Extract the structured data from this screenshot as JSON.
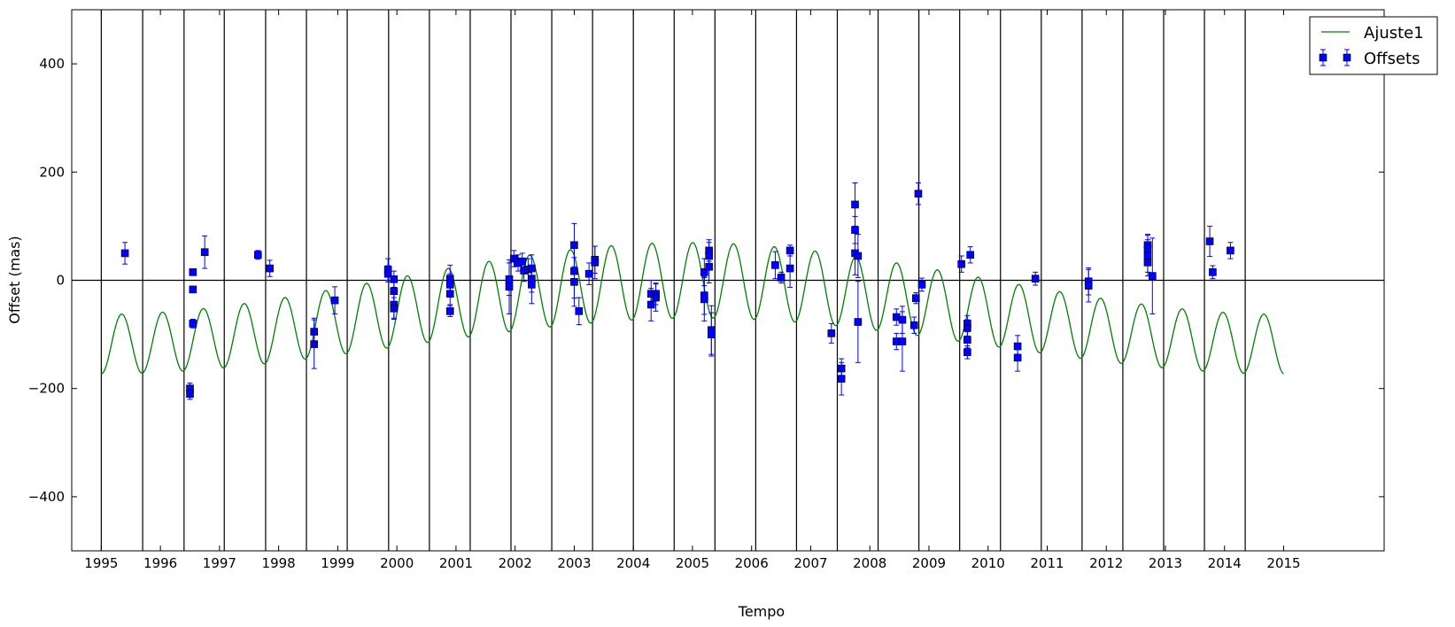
{
  "chart_data": {
    "type": "scatter",
    "title": "",
    "xlabel": "Tempo",
    "ylabel": "Offset (mas)",
    "xlim": [
      1994.5,
      2016.7
    ],
    "ylim": [
      -500,
      500
    ],
    "x_ticks": [
      1995,
      1996,
      1997,
      1998,
      1999,
      2000,
      2001,
      2002,
      2003,
      2004,
      2005,
      2006,
      2007,
      2008,
      2009,
      2010,
      2011,
      2012,
      2013,
      2014,
      2015
    ],
    "x_tick_labels": [
      "1995",
      "1996",
      "1997",
      "1998",
      "1999",
      "2000",
      "2001",
      "2002",
      "2003",
      "2004",
      "2005",
      "2006",
      "2007",
      "2008",
      "2009",
      "2010",
      "2011",
      "2012",
      "2013",
      "2014",
      "2015"
    ],
    "y_ticks": [
      -400,
      -200,
      0,
      200,
      400
    ],
    "y_tick_labels": [
      "−400",
      "−200",
      "0",
      "200",
      "400"
    ],
    "reference_line_y": 0,
    "vertical_lines_x": [
      1995.0,
      1995.7,
      1996.4,
      1997.08,
      1997.78,
      1998.47,
      1999.16,
      1999.86,
      2000.55,
      2001.24,
      2001.93,
      2002.62,
      2003.31,
      2004.0,
      2004.69,
      2005.38,
      2006.07,
      2006.76,
      2007.45,
      2008.14,
      2008.83,
      2009.52,
      2010.21,
      2010.9,
      2011.59,
      2012.28,
      2012.97,
      2013.66,
      2014.35
    ],
    "grid": false,
    "legend_position": "top-right",
    "legend": [
      {
        "label": "Ajuste1",
        "kind": "line",
        "color": "#008000"
      },
      {
        "label": "Offsets",
        "kind": "marker",
        "color": "#0000ff"
      }
    ],
    "series": [
      {
        "name": "Ajuste1",
        "kind": "line",
        "color": "#008000",
        "x_range": [
          1995.0,
          2015.0
        ],
        "model": {
          "period_years": 0.69,
          "phase_ref_year": 1995.0,
          "amplitude_start": 55,
          "amplitude_end": 55,
          "amplitude_mid": 70,
          "amplitude_mid_year": 2004.0,
          "center_start": -118,
          "center_mid": 0,
          "center_end": -118,
          "center_mid_year": 2005.0
        }
      },
      {
        "name": "Offsets",
        "kind": "scatter-errorbar",
        "color": "#0000ff",
        "points": [
          {
            "x": 1995.4,
            "y": 50,
            "err": 20
          },
          {
            "x": 1996.5,
            "y": -200,
            "err": 10
          },
          {
            "x": 1996.5,
            "y": -210,
            "err": 10
          },
          {
            "x": 1996.55,
            "y": 15,
            "err": 5
          },
          {
            "x": 1996.55,
            "y": -17,
            "err": 5
          },
          {
            "x": 1996.55,
            "y": -80,
            "err": 8
          },
          {
            "x": 1996.75,
            "y": 52,
            "err": 30
          },
          {
            "x": 1997.65,
            "y": 47,
            "err": 8
          },
          {
            "x": 1997.85,
            "y": 22,
            "err": 15
          },
          {
            "x": 1998.6,
            "y": -95,
            "err": 25
          },
          {
            "x": 1998.6,
            "y": -118,
            "err": 45
          },
          {
            "x": 1998.95,
            "y": -37,
            "err": 25
          },
          {
            "x": 1999.85,
            "y": 20,
            "err": 20
          },
          {
            "x": 1999.85,
            "y": 12,
            "err": 15
          },
          {
            "x": 1999.95,
            "y": 2,
            "err": 15
          },
          {
            "x": 1999.95,
            "y": -20,
            "err": 20
          },
          {
            "x": 1999.95,
            "y": -45,
            "err": 25
          },
          {
            "x": 1999.95,
            "y": -52,
            "err": 20
          },
          {
            "x": 2000.9,
            "y": 3,
            "err": 25
          },
          {
            "x": 2000.9,
            "y": -8,
            "err": 20
          },
          {
            "x": 2000.9,
            "y": -25,
            "err": 20
          },
          {
            "x": 2000.9,
            "y": -57,
            "err": 10
          },
          {
            "x": 2001.9,
            "y": 2,
            "err": 30
          },
          {
            "x": 2001.9,
            "y": -12,
            "err": 50
          },
          {
            "x": 2001.98,
            "y": 40,
            "err": 15
          },
          {
            "x": 2002.05,
            "y": 32,
            "err": 15
          },
          {
            "x": 2002.12,
            "y": 35,
            "err": 15
          },
          {
            "x": 2002.15,
            "y": 18,
            "err": 20
          },
          {
            "x": 2002.22,
            "y": 20,
            "err": 20
          },
          {
            "x": 2002.28,
            "y": 22,
            "err": 25
          },
          {
            "x": 2002.28,
            "y": 3,
            "err": 25
          },
          {
            "x": 2002.28,
            "y": -8,
            "err": 35
          },
          {
            "x": 2003.0,
            "y": 65,
            "err": 40
          },
          {
            "x": 2003.0,
            "y": 17,
            "err": 50
          },
          {
            "x": 2003.0,
            "y": -3,
            "err": 45
          },
          {
            "x": 2003.08,
            "y": -57,
            "err": 25
          },
          {
            "x": 2003.25,
            "y": 12,
            "err": 20
          },
          {
            "x": 2003.35,
            "y": 38,
            "err": 25
          },
          {
            "x": 2003.35,
            "y": 33,
            "err": 30
          },
          {
            "x": 2004.3,
            "y": -25,
            "err": 25
          },
          {
            "x": 2004.3,
            "y": -45,
            "err": 30
          },
          {
            "x": 2004.38,
            "y": -25,
            "err": 20
          },
          {
            "x": 2004.38,
            "y": -32,
            "err": 25
          },
          {
            "x": 2005.2,
            "y": 15,
            "err": 25
          },
          {
            "x": 2005.2,
            "y": -28,
            "err": 35
          },
          {
            "x": 2005.2,
            "y": -35,
            "err": 40
          },
          {
            "x": 2005.28,
            "y": 55,
            "err": 20
          },
          {
            "x": 2005.28,
            "y": 45,
            "err": 25
          },
          {
            "x": 2005.28,
            "y": 25,
            "err": 30
          },
          {
            "x": 2005.32,
            "y": -92,
            "err": 45
          },
          {
            "x": 2005.32,
            "y": -100,
            "err": 40
          },
          {
            "x": 2006.4,
            "y": 28,
            "err": 25
          },
          {
            "x": 2006.5,
            "y": 5,
            "err": 10
          },
          {
            "x": 2006.65,
            "y": 55,
            "err": 10
          },
          {
            "x": 2006.65,
            "y": 22,
            "err": 35
          },
          {
            "x": 2007.35,
            "y": -98,
            "err": 18
          },
          {
            "x": 2007.52,
            "y": -163,
            "err": 18
          },
          {
            "x": 2007.52,
            "y": -182,
            "err": 30
          },
          {
            "x": 2007.75,
            "y": 140,
            "err": 40
          },
          {
            "x": 2007.75,
            "y": 93,
            "err": 25
          },
          {
            "x": 2007.75,
            "y": 50,
            "err": 40
          },
          {
            "x": 2007.8,
            "y": 45,
            "err": 40
          },
          {
            "x": 2007.8,
            "y": -77,
            "err": 75
          },
          {
            "x": 2008.45,
            "y": -68,
            "err": 15
          },
          {
            "x": 2008.45,
            "y": -113,
            "err": 15
          },
          {
            "x": 2008.55,
            "y": -73,
            "err": 25
          },
          {
            "x": 2008.55,
            "y": -113,
            "err": 55
          },
          {
            "x": 2008.75,
            "y": -83,
            "err": 15
          },
          {
            "x": 2008.78,
            "y": -33,
            "err": 10
          },
          {
            "x": 2008.82,
            "y": 160,
            "err": 20
          },
          {
            "x": 2008.88,
            "y": -8,
            "err": 12
          },
          {
            "x": 2009.55,
            "y": 30,
            "err": 15
          },
          {
            "x": 2009.65,
            "y": -80,
            "err": 15
          },
          {
            "x": 2009.65,
            "y": -88,
            "err": 15
          },
          {
            "x": 2009.65,
            "y": -110,
            "err": 15
          },
          {
            "x": 2009.65,
            "y": -133,
            "err": 12
          },
          {
            "x": 2009.7,
            "y": 47,
            "err": 15
          },
          {
            "x": 2010.5,
            "y": -122,
            "err": 20
          },
          {
            "x": 2010.5,
            "y": -143,
            "err": 25
          },
          {
            "x": 2010.8,
            "y": 3,
            "err": 12
          },
          {
            "x": 2011.7,
            "y": -2,
            "err": 25
          },
          {
            "x": 2011.7,
            "y": -10,
            "err": 30
          },
          {
            "x": 2012.7,
            "y": 65,
            "err": 20
          },
          {
            "x": 2012.7,
            "y": 58,
            "err": 25
          },
          {
            "x": 2012.7,
            "y": 45,
            "err": 30
          },
          {
            "x": 2012.7,
            "y": 33,
            "err": 25
          },
          {
            "x": 2012.78,
            "y": 8,
            "err": 70
          },
          {
            "x": 2013.75,
            "y": 72,
            "err": 28
          },
          {
            "x": 2013.8,
            "y": 15,
            "err": 12
          },
          {
            "x": 2014.1,
            "y": 55,
            "err": 15
          }
        ]
      }
    ]
  }
}
